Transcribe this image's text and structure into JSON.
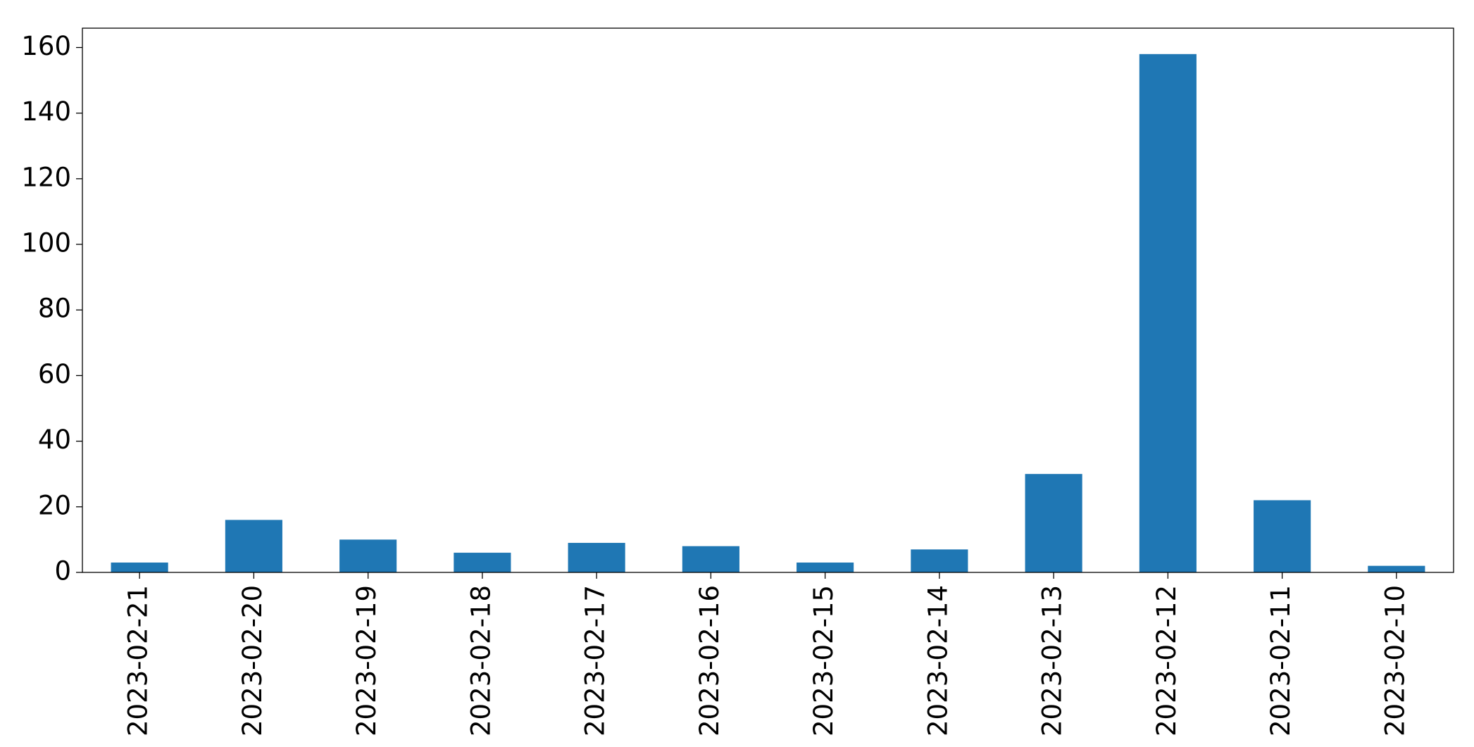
{
  "chart_data": {
    "type": "bar",
    "categories": [
      "2023-02-21",
      "2023-02-20",
      "2023-02-19",
      "2023-02-18",
      "2023-02-17",
      "2023-02-16",
      "2023-02-15",
      "2023-02-14",
      "2023-02-13",
      "2023-02-12",
      "2023-02-11",
      "2023-02-10"
    ],
    "values": [
      3,
      16,
      10,
      6,
      9,
      8,
      3,
      7,
      30,
      158,
      22,
      2
    ],
    "color": "#1f77b4",
    "ylim": [
      0,
      165.9
    ],
    "yticks": [
      0,
      20,
      40,
      60,
      80,
      100,
      120,
      140,
      160
    ],
    "grid": false
  }
}
